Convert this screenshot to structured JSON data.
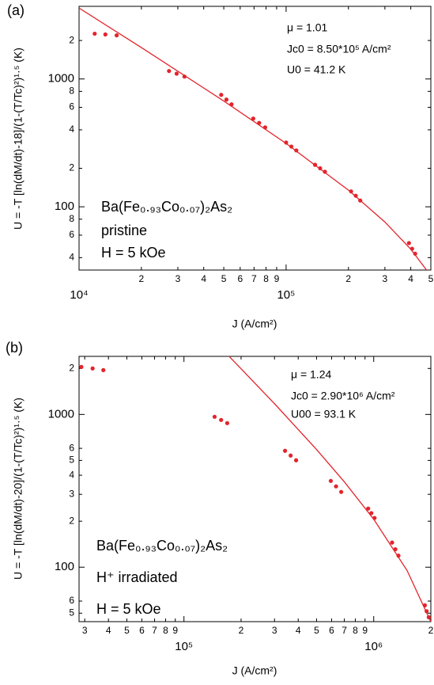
{
  "chart_data": [
    {
      "type": "scatter",
      "panel_label": "(a)",
      "x_label": "J (A/cm²)",
      "y_label": "U = -T [ln(dM/dt)-18]/(1-(T/Tc)²)¹·⁵ (K)",
      "xscale": "log",
      "yscale": "log",
      "grid": false,
      "xlim": [
        10000,
        500000
      ],
      "ylim": [
        32,
        3700
      ],
      "xticks": [
        {
          "value": 10000,
          "label": "10⁴"
        },
        {
          "value": 20000,
          "label": "2"
        },
        {
          "value": 30000,
          "label": "3"
        },
        {
          "value": 40000,
          "label": "4"
        },
        {
          "value": 50000,
          "label": "5"
        },
        {
          "value": 60000,
          "label": "6"
        },
        {
          "value": 70000,
          "label": "7"
        },
        {
          "value": 80000,
          "label": "8"
        },
        {
          "value": 90000,
          "label": "9"
        },
        {
          "value": 100000,
          "label": "10⁵"
        },
        {
          "value": 200000,
          "label": "2"
        },
        {
          "value": 300000,
          "label": "3"
        },
        {
          "value": 400000,
          "label": "4"
        },
        {
          "value": 500000,
          "label": "5"
        }
      ],
      "yticks": [
        {
          "value": 40,
          "label": "4"
        },
        {
          "value": 60,
          "label": "6"
        },
        {
          "value": 80,
          "label": "8"
        },
        100,
        {
          "value": 200,
          "label": "2"
        },
        {
          "value": 400,
          "label": "4"
        },
        {
          "value": 600,
          "label": "6"
        },
        {
          "value": 800,
          "label": "8"
        },
        1000,
        {
          "value": 2000,
          "label": "2"
        }
      ],
      "annotations": [
        "μ = 1.01",
        "Jc0 = 8.50*10⁵ A/cm²",
        "U0 = 41.2 K",
        "Ba(Fe₀.₉₃Co₀.₀₇)₂As₂",
        "pristine",
        "H = 5 kOe"
      ],
      "series": [
        {
          "style": "points",
          "color": "#e3242b",
          "x": [
            11900,
            13400,
            15200,
            27200,
            29600,
            32300,
            48600,
            51500,
            54500,
            69400,
            74100,
            79200,
            100000,
            106000,
            112000,
            138000,
            146000,
            154000,
            206000,
            217000,
            228000,
            392000,
            406000,
            420000
          ],
          "values": [
            2260,
            2230,
            2195,
            1154,
            1100,
            1044,
            751,
            690,
            633,
            490,
            453,
            418,
            318,
            296,
            276,
            213,
            200,
            188,
            132,
            122,
            112,
            52,
            47,
            43
          ]
        },
        {
          "style": "line",
          "color": "#e3242b",
          "x": [
            10000,
            20000,
            50000,
            100000,
            200000,
            300000,
            400000,
            500000
          ],
          "values": [
            3590,
            1760,
            672,
            313,
            135,
            76,
            46.6,
            28.9
          ]
        }
      ]
    },
    {
      "type": "scatter",
      "panel_label": "(b)",
      "x_label": "J (A/cm²)",
      "y_label": "U = -T [ln(dM/dt)-20]/(1-(T/Tc)²)¹·⁵ (K)",
      "xscale": "log",
      "yscale": "log",
      "grid": false,
      "xlim": [
        28000,
        2000000
      ],
      "ylim": [
        44,
        2400
      ],
      "xticks": [
        {
          "value": 30000,
          "label": "3"
        },
        {
          "value": 40000,
          "label": "4"
        },
        {
          "value": 50000,
          "label": "5"
        },
        {
          "value": 60000,
          "label": "6"
        },
        {
          "value": 70000,
          "label": "7"
        },
        {
          "value": 80000,
          "label": "8"
        },
        {
          "value": 90000,
          "label": "9"
        },
        {
          "value": 100000,
          "label": "10⁵"
        },
        {
          "value": 200000,
          "label": "2"
        },
        {
          "value": 300000,
          "label": "3"
        },
        {
          "value": 400000,
          "label": "4"
        },
        {
          "value": 500000,
          "label": "5"
        },
        {
          "value": 600000,
          "label": "6"
        },
        {
          "value": 700000,
          "label": "7"
        },
        {
          "value": 800000,
          "label": "8"
        },
        {
          "value": 900000,
          "label": "9"
        },
        {
          "value": 1000000,
          "label": "10⁶"
        },
        {
          "value": 2000000,
          "label": "2"
        }
      ],
      "yticks": [
        {
          "value": 50,
          "label": "5"
        },
        {
          "value": 60,
          "label": "6"
        },
        100,
        {
          "value": 200,
          "label": "2"
        },
        {
          "value": 300,
          "label": "3"
        },
        {
          "value": 400,
          "label": "4"
        },
        {
          "value": 500,
          "label": "5"
        },
        {
          "value": 600,
          "label": "6"
        },
        1000,
        {
          "value": 2000,
          "label": "2"
        }
      ],
      "annotations": [
        "μ = 1.24",
        "Jc0 = 2.90*10⁶ A/cm²",
        "U00 = 93.1 K",
        "Ba(Fe₀.₉₃Co₀.₀₇)₂As₂",
        "H⁺ irradiated",
        "H = 5 kOe"
      ],
      "series": [
        {
          "style": "points",
          "color": "#e3242b",
          "x": [
            28800,
            33000,
            37600,
            145000,
            157000,
            169000,
            341000,
            365000,
            390000,
            594000,
            633000,
            674000,
            935000,
            972000,
            1010000,
            1250000,
            1300000,
            1350000,
            1860000,
            1900000,
            1950000
          ],
          "values": [
            2046,
            2000,
            1950,
            965,
            920,
            877,
            578,
            538,
            501,
            367,
            338,
            311,
            242,
            226,
            210,
            145,
            131,
            119,
            56.3,
            51.5,
            47
          ]
        },
        {
          "style": "line",
          "color": "#e3242b",
          "x": [
            150000,
            200000,
            300000,
            500000,
            700000,
            1000000,
            1500000,
            2000000
          ],
          "values": [
            2884,
            1990,
            1176,
            589,
            362,
            206,
            95,
            43.9
          ]
        }
      ]
    }
  ]
}
